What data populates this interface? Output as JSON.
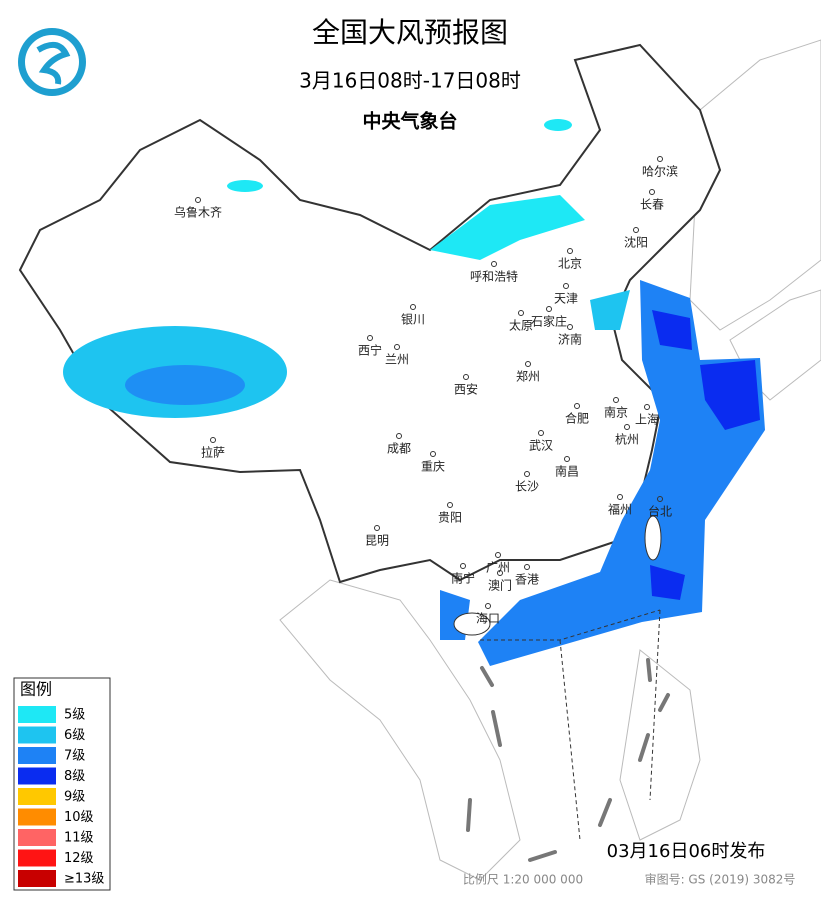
{
  "header": {
    "title": "全国大风预报图",
    "period": "3月16日08时-17日08时",
    "issuer": "中央气象台"
  },
  "legend": {
    "title": "图例",
    "items": [
      {
        "label": "5级",
        "color": "#1ee8f5"
      },
      {
        "label": "6级",
        "color": "#1ec4f0"
      },
      {
        "label": "7级",
        "color": "#1e82f5"
      },
      {
        "label": "8级",
        "color": "#0a2cf0"
      },
      {
        "label": "9级",
        "color": "#ffc800"
      },
      {
        "label": "10级",
        "color": "#ff8c00"
      },
      {
        "label": "11级",
        "color": "#ff6464"
      },
      {
        "label": "12级",
        "color": "#ff1414"
      },
      {
        "label": "≥13级",
        "color": "#c80000"
      }
    ]
  },
  "cities": [
    "乌鲁木齐",
    "哈尔滨",
    "长春",
    "沈阳",
    "呼和浩特",
    "北京",
    "天津",
    "银川",
    "太原",
    "石家庄",
    "济南",
    "西宁",
    "兰州",
    "郑州",
    "西安",
    "南京",
    "合肥",
    "上海",
    "杭州",
    "成都",
    "武汉",
    "重庆",
    "长沙",
    "南昌",
    "拉萨",
    "贵阳",
    "福州",
    "台北",
    "昆明",
    "南宁",
    "广州",
    "澳门",
    "香港",
    "海口"
  ],
  "footer": {
    "issued": "03月16日06时发布",
    "scale": "比例尺 1:20 000 000",
    "approval": "审图号: GS (2019) 3082号"
  }
}
